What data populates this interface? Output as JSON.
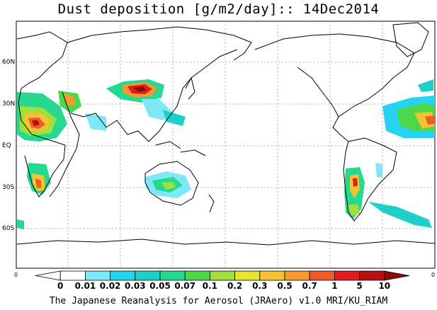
{
  "title": "Dust deposition [g/m2/day]:: 14Dec2014",
  "latitude_labels": [
    "60N",
    "30N",
    "EQ",
    "30S",
    "60S"
  ],
  "axis_end_labels": [
    "0",
    "0"
  ],
  "colorbar": {
    "labels": [
      "0",
      "0.01",
      "0.02",
      "0.03",
      "0.05",
      "0.07",
      "0.1",
      "0.2",
      "0.3",
      "0.5",
      "0.7",
      "1",
      "5",
      "10"
    ],
    "colors": [
      "#ffffff",
      "#ffffff",
      "#7fe8f8",
      "#26d3f0",
      "#1ccfc8",
      "#25d98f",
      "#4cd84a",
      "#a0e03c",
      "#e6e632",
      "#f4c332",
      "#f49a30",
      "#ef5a2a",
      "#e01e1e",
      "#b80f0f",
      "#8c0a0a"
    ]
  },
  "footer": "The Japanese Reanalysis for Aerosol (JRAero) v1.0 MRI/KU_RIAM"
}
